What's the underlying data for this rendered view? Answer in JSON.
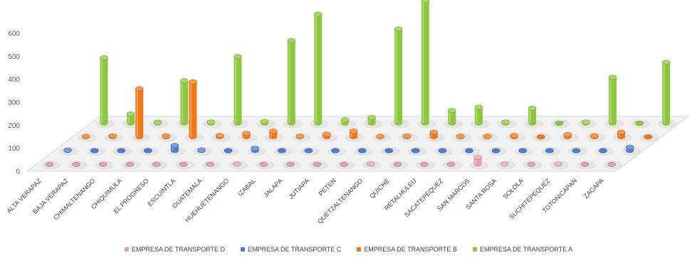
{
  "chart_data": {
    "type": "bar",
    "ylim": [
      0,
      600
    ],
    "yticks": [
      0,
      100,
      200,
      300,
      400,
      500,
      600
    ],
    "categories": [
      "ALTA VERAPAZ",
      "BAJA VERAPAZ",
      "CHIMALTENANGO",
      "CHIQUIMULA",
      "EL PROGRESO",
      "ESCUINTLA",
      "GUATEMALA",
      "HUEHUETENANGO",
      "IZABAL",
      "JALAPA",
      "JUTIAPA",
      "PETEN",
      "QUETZALTENANGO",
      "QUICHE",
      "RETALHULEU",
      "SACATEPEQUEZ",
      "SAN MARCOS",
      "SANTA ROSA",
      "SOLOLA",
      "SUCHITEPEQUEZ",
      "TOTONICAPAN",
      "ZACAPA"
    ],
    "series": [
      {
        "name": "EMPRESA DE TRANSPORTE D",
        "color": "#e6a0a8",
        "values": [
          0,
          0,
          0,
          0,
          0,
          0,
          0,
          2,
          0,
          0,
          0,
          0,
          2,
          0,
          0,
          0,
          30,
          2,
          0,
          2,
          0,
          0
        ]
      },
      {
        "name": "EMPRESA DE TRANSPORTE C",
        "color": "#4a7fd0",
        "values": [
          2,
          0,
          0,
          0,
          22,
          3,
          0,
          10,
          0,
          0,
          0,
          0,
          0,
          0,
          0,
          0,
          0,
          0,
          0,
          0,
          0,
          15
        ]
      },
      {
        "name": "EMPRESA DE TRANSPORTE B",
        "color": "#f07818",
        "values": [
          2,
          4,
          210,
          4,
          240,
          6,
          15,
          25,
          3,
          12,
          25,
          2,
          4,
          20,
          3,
          3,
          6,
          0,
          10,
          5,
          20,
          0
        ]
      },
      {
        "name": "EMPRESA DE TRANSPORTE A",
        "color": "#8cc83c",
        "values": [
          285,
          40,
          4,
          185,
          5,
          290,
          7,
          360,
          475,
          15,
          25,
          410,
          535,
          55,
          70,
          5,
          65,
          0,
          5,
          200,
          0,
          265
        ]
      }
    ]
  }
}
